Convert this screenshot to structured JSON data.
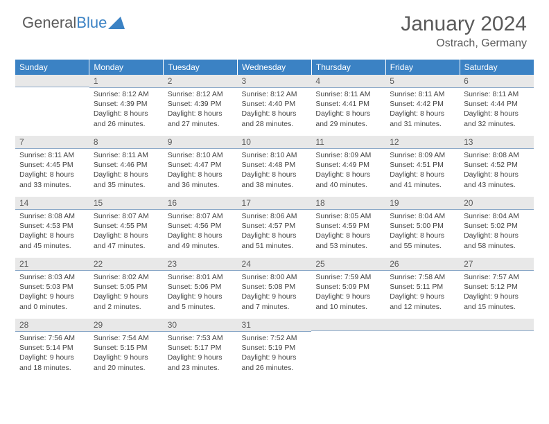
{
  "logo": {
    "word1": "General",
    "word2": "Blue"
  },
  "title": "January 2024",
  "location": "Ostrach, Germany",
  "colors": {
    "header_bg": "#3b82c4",
    "header_text": "#ffffff",
    "daynum_bg": "#e8e8e8",
    "daynum_border": "#8aa8c8",
    "body_text": "#444444",
    "title_text": "#5a5a5a",
    "page_bg": "#ffffff"
  },
  "weekdays": [
    "Sunday",
    "Monday",
    "Tuesday",
    "Wednesday",
    "Thursday",
    "Friday",
    "Saturday"
  ],
  "weeks": [
    [
      null,
      {
        "n": "1",
        "sr": "Sunrise: 8:12 AM",
        "ss": "Sunset: 4:39 PM",
        "d1": "Daylight: 8 hours",
        "d2": "and 26 minutes."
      },
      {
        "n": "2",
        "sr": "Sunrise: 8:12 AM",
        "ss": "Sunset: 4:39 PM",
        "d1": "Daylight: 8 hours",
        "d2": "and 27 minutes."
      },
      {
        "n": "3",
        "sr": "Sunrise: 8:12 AM",
        "ss": "Sunset: 4:40 PM",
        "d1": "Daylight: 8 hours",
        "d2": "and 28 minutes."
      },
      {
        "n": "4",
        "sr": "Sunrise: 8:11 AM",
        "ss": "Sunset: 4:41 PM",
        "d1": "Daylight: 8 hours",
        "d2": "and 29 minutes."
      },
      {
        "n": "5",
        "sr": "Sunrise: 8:11 AM",
        "ss": "Sunset: 4:42 PM",
        "d1": "Daylight: 8 hours",
        "d2": "and 31 minutes."
      },
      {
        "n": "6",
        "sr": "Sunrise: 8:11 AM",
        "ss": "Sunset: 4:44 PM",
        "d1": "Daylight: 8 hours",
        "d2": "and 32 minutes."
      }
    ],
    [
      {
        "n": "7",
        "sr": "Sunrise: 8:11 AM",
        "ss": "Sunset: 4:45 PM",
        "d1": "Daylight: 8 hours",
        "d2": "and 33 minutes."
      },
      {
        "n": "8",
        "sr": "Sunrise: 8:11 AM",
        "ss": "Sunset: 4:46 PM",
        "d1": "Daylight: 8 hours",
        "d2": "and 35 minutes."
      },
      {
        "n": "9",
        "sr": "Sunrise: 8:10 AM",
        "ss": "Sunset: 4:47 PM",
        "d1": "Daylight: 8 hours",
        "d2": "and 36 minutes."
      },
      {
        "n": "10",
        "sr": "Sunrise: 8:10 AM",
        "ss": "Sunset: 4:48 PM",
        "d1": "Daylight: 8 hours",
        "d2": "and 38 minutes."
      },
      {
        "n": "11",
        "sr": "Sunrise: 8:09 AM",
        "ss": "Sunset: 4:49 PM",
        "d1": "Daylight: 8 hours",
        "d2": "and 40 minutes."
      },
      {
        "n": "12",
        "sr": "Sunrise: 8:09 AM",
        "ss": "Sunset: 4:51 PM",
        "d1": "Daylight: 8 hours",
        "d2": "and 41 minutes."
      },
      {
        "n": "13",
        "sr": "Sunrise: 8:08 AM",
        "ss": "Sunset: 4:52 PM",
        "d1": "Daylight: 8 hours",
        "d2": "and 43 minutes."
      }
    ],
    [
      {
        "n": "14",
        "sr": "Sunrise: 8:08 AM",
        "ss": "Sunset: 4:53 PM",
        "d1": "Daylight: 8 hours",
        "d2": "and 45 minutes."
      },
      {
        "n": "15",
        "sr": "Sunrise: 8:07 AM",
        "ss": "Sunset: 4:55 PM",
        "d1": "Daylight: 8 hours",
        "d2": "and 47 minutes."
      },
      {
        "n": "16",
        "sr": "Sunrise: 8:07 AM",
        "ss": "Sunset: 4:56 PM",
        "d1": "Daylight: 8 hours",
        "d2": "and 49 minutes."
      },
      {
        "n": "17",
        "sr": "Sunrise: 8:06 AM",
        "ss": "Sunset: 4:57 PM",
        "d1": "Daylight: 8 hours",
        "d2": "and 51 minutes."
      },
      {
        "n": "18",
        "sr": "Sunrise: 8:05 AM",
        "ss": "Sunset: 4:59 PM",
        "d1": "Daylight: 8 hours",
        "d2": "and 53 minutes."
      },
      {
        "n": "19",
        "sr": "Sunrise: 8:04 AM",
        "ss": "Sunset: 5:00 PM",
        "d1": "Daylight: 8 hours",
        "d2": "and 55 minutes."
      },
      {
        "n": "20",
        "sr": "Sunrise: 8:04 AM",
        "ss": "Sunset: 5:02 PM",
        "d1": "Daylight: 8 hours",
        "d2": "and 58 minutes."
      }
    ],
    [
      {
        "n": "21",
        "sr": "Sunrise: 8:03 AM",
        "ss": "Sunset: 5:03 PM",
        "d1": "Daylight: 9 hours",
        "d2": "and 0 minutes."
      },
      {
        "n": "22",
        "sr": "Sunrise: 8:02 AM",
        "ss": "Sunset: 5:05 PM",
        "d1": "Daylight: 9 hours",
        "d2": "and 2 minutes."
      },
      {
        "n": "23",
        "sr": "Sunrise: 8:01 AM",
        "ss": "Sunset: 5:06 PM",
        "d1": "Daylight: 9 hours",
        "d2": "and 5 minutes."
      },
      {
        "n": "24",
        "sr": "Sunrise: 8:00 AM",
        "ss": "Sunset: 5:08 PM",
        "d1": "Daylight: 9 hours",
        "d2": "and 7 minutes."
      },
      {
        "n": "25",
        "sr": "Sunrise: 7:59 AM",
        "ss": "Sunset: 5:09 PM",
        "d1": "Daylight: 9 hours",
        "d2": "and 10 minutes."
      },
      {
        "n": "26",
        "sr": "Sunrise: 7:58 AM",
        "ss": "Sunset: 5:11 PM",
        "d1": "Daylight: 9 hours",
        "d2": "and 12 minutes."
      },
      {
        "n": "27",
        "sr": "Sunrise: 7:57 AM",
        "ss": "Sunset: 5:12 PM",
        "d1": "Daylight: 9 hours",
        "d2": "and 15 minutes."
      }
    ],
    [
      {
        "n": "28",
        "sr": "Sunrise: 7:56 AM",
        "ss": "Sunset: 5:14 PM",
        "d1": "Daylight: 9 hours",
        "d2": "and 18 minutes."
      },
      {
        "n": "29",
        "sr": "Sunrise: 7:54 AM",
        "ss": "Sunset: 5:15 PM",
        "d1": "Daylight: 9 hours",
        "d2": "and 20 minutes."
      },
      {
        "n": "30",
        "sr": "Sunrise: 7:53 AM",
        "ss": "Sunset: 5:17 PM",
        "d1": "Daylight: 9 hours",
        "d2": "and 23 minutes."
      },
      {
        "n": "31",
        "sr": "Sunrise: 7:52 AM",
        "ss": "Sunset: 5:19 PM",
        "d1": "Daylight: 9 hours",
        "d2": "and 26 minutes."
      },
      null,
      null,
      null
    ]
  ]
}
